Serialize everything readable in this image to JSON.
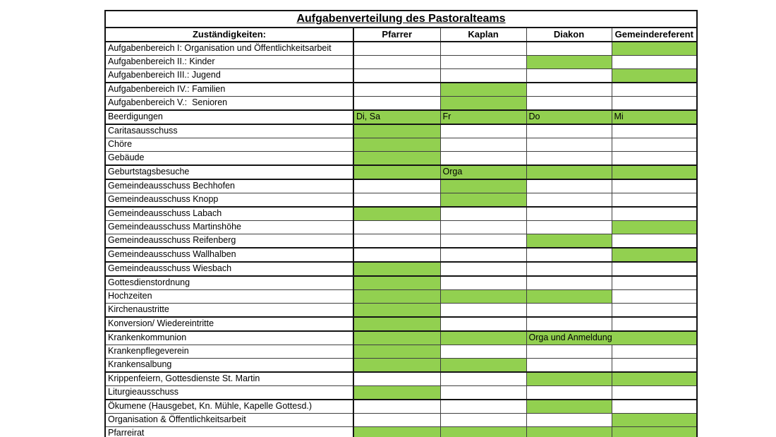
{
  "title": "Aufgabenverteilung des Pastoralteams",
  "header": {
    "responsibilities": "Zuständigkeiten:",
    "roles": [
      "Pfarrer",
      "Kaplan",
      "Diakon",
      "Gemeindereferent"
    ]
  },
  "colors": {
    "assignment_green": "#92d050",
    "border_dark": "#141414",
    "border_normal": "#404040"
  },
  "legend_note": "",
  "rows": [
    {
      "label": "Aufgabenbereich I: Organisation und Öffentlichkeitsarbeit",
      "gemeindereferent": ""
    },
    {
      "label": "Aufgabenbereich II.: Kinder",
      "diakon": ""
    },
    {
      "label": "Aufgabenbereich III.: Jugend",
      "gemeindereferent": "",
      "thick_bottom": true
    },
    {
      "label": "Aufgabenbereich IV.: Familien",
      "kaplan": ""
    },
    {
      "label": "Aufgabenbereich V.:  Senioren",
      "kaplan": "",
      "thick_bottom": true
    },
    {
      "label": "Beerdigungen",
      "pfarrer": "Di, Sa",
      "kaplan": "Fr",
      "diakon": "Do",
      "gemeindereferent": "Mi",
      "thick_bottom": true
    },
    {
      "label": "Caritasausschuss",
      "pfarrer": ""
    },
    {
      "label": "Chöre",
      "pfarrer": ""
    },
    {
      "label": "Gebäude",
      "pfarrer": "",
      "thick_bottom": true
    },
    {
      "label": "Geburtstagsbesuche",
      "pfarrer": "",
      "kaplan": "Orga",
      "diakon": "",
      "gemeindereferent": "",
      "thick_bottom": true
    },
    {
      "label": "Gemeindeausschuss Bechhofen",
      "kaplan": ""
    },
    {
      "label": "Gemeindeausschuss Knopp",
      "kaplan": "",
      "thick_bottom": true
    },
    {
      "label": "Gemeindeausschuss Labach",
      "pfarrer": ""
    },
    {
      "label": "Gemeindeausschuss Martinshöhe",
      "gemeindereferent": ""
    },
    {
      "label": "Gemeindeausschuss Reifenberg",
      "diakon": "",
      "thick_bottom": true
    },
    {
      "label": "Gemeindeausschuss Wallhalben",
      "gemeindereferent": "",
      "thick_bottom": true
    },
    {
      "label": "Gemeindeausschuss Wiesbach",
      "pfarrer": "",
      "thick_bottom": true
    },
    {
      "label": "Gottesdienstordnung",
      "pfarrer": ""
    },
    {
      "label": "Hochzeiten",
      "pfarrer": "",
      "kaplan": "",
      "diakon": ""
    },
    {
      "label": "Kirchenaustritte",
      "pfarrer": "",
      "thick_bottom": true
    },
    {
      "label": "Konversion/ Wiedereintritte",
      "pfarrer": "",
      "thick_bottom": true
    },
    {
      "label": "Krankenkommunion",
      "pfarrer": "",
      "kaplan": "",
      "diakon": "Orga und Anmeldung",
      "merge_diakon_gemeindereferent": true
    },
    {
      "label": "Krankenpflegeverein",
      "pfarrer": ""
    },
    {
      "label": "Krankensalbung",
      "pfarrer": "",
      "kaplan": "",
      "thick_bottom": true
    },
    {
      "label": "Krippenfeiern, Gottesdienste St. Martin",
      "diakon": "",
      "gemeindereferent": ""
    },
    {
      "label": "Liturgieausschuss",
      "pfarrer": "",
      "thick_bottom": true
    },
    {
      "label": "Ökumene (Hausgebet, Kn. Mühle, Kapelle Gottesd.)",
      "diakon": ""
    },
    {
      "label": "Organisation & Öffentlichkeitsarbeit",
      "gemeindereferent": ""
    },
    {
      "label": "Pfarreirat",
      "pfarrer": "",
      "kaplan": "",
      "diakon": "",
      "gemeindereferent": ""
    }
  ]
}
